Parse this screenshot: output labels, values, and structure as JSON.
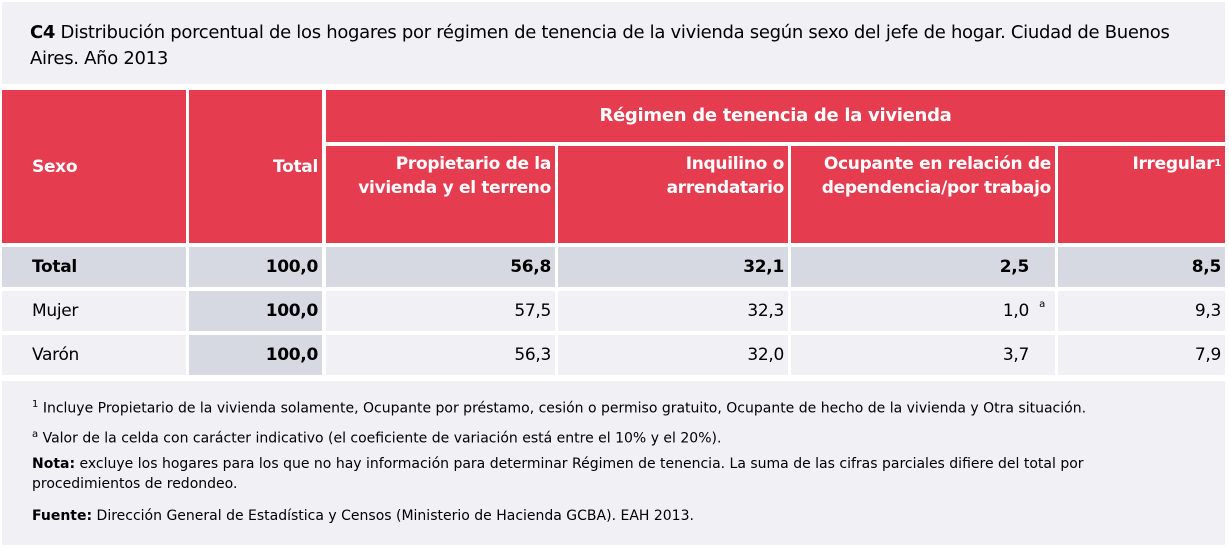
{
  "title": {
    "code": "C4",
    "text": " Distribución porcentual de los hogares por régimen de tenencia de la vivienda según sexo del jefe de hogar. Ciudad de Buenos Aires. Año 2013"
  },
  "header": {
    "sexo": "Sexo",
    "total": "Total",
    "group": "Régimen de tenencia de la vivienda",
    "cols": [
      "Propietario de la vivienda y el terreno",
      "Inquilino o arrendatario",
      "Ocupante en relación de dependencia/por trabajo",
      "Irregular"
    ],
    "irregular_note": "1"
  },
  "rows": [
    {
      "label": "Total",
      "total": "100,0",
      "values": [
        "56,8",
        "32,1",
        "2,5",
        "8,5"
      ],
      "note": ""
    },
    {
      "label": "Mujer",
      "total": "100,0",
      "values": [
        "57,5",
        "32,3",
        "1,0",
        "9,3"
      ],
      "note": "a"
    },
    {
      "label": "Varón",
      "total": "100,0",
      "values": [
        "56,3",
        "32,0",
        "3,7",
        "7,9"
      ],
      "note": ""
    }
  ],
  "footer": {
    "n1_mark": "1",
    "n1": " Incluye Propietario de la vivienda solamente, Ocupante por préstamo, cesión o permiso gratuito, Ocupante de hecho de la vivienda y Otra situación.",
    "na_mark": "a",
    "na": " Valor de la celda con carácter indicativo (el coeficiente de variación está entre el 10% y el 20%).",
    "nota_label": "Nota:",
    "nota": " excluye los hogares para los que no hay información para determinar Régimen de tenencia. La suma de las cifras parciales difiere del total por procedimientos de redondeo.",
    "fuente_label": "Fuente:",
    "fuente": " Dirección General de Estadística y Censos (Ministerio de Hacienda GCBA). EAH 2013."
  },
  "colors": {
    "header": "#e63c50",
    "shaded": "#d6d9e2",
    "light": "#f0f0f5"
  }
}
